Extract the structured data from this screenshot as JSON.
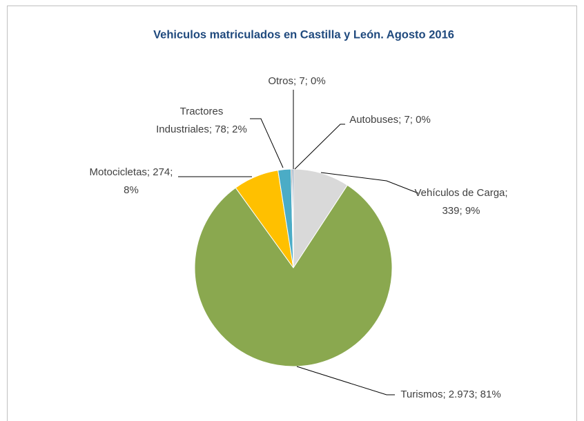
{
  "chart_data": {
    "type": "pie",
    "title": "Vehiculos matriculados en Castilla y León. Agosto  2016",
    "categories": [
      "Vehículos de Carga",
      "Turismos",
      "Motocicletas",
      "Tractores Industriales",
      "Otros",
      "Autobuses"
    ],
    "values": [
      339,
      2973,
      274,
      78,
      7,
      7
    ],
    "value_labels": [
      "Vehículos de Carga; 339; 9%",
      "Turismos; 2.973; 81%",
      "Motocicletas; 274; 8%",
      "Tractores Industriales; 78; 2%",
      "Otros; 7; 0%",
      "Autobuses; 7; 0%"
    ],
    "colors": [
      "#d9d9d9",
      "#8aa84f",
      "#ffc000",
      "#4bacc6",
      "#7f7f7f",
      "#1f497d"
    ]
  }
}
